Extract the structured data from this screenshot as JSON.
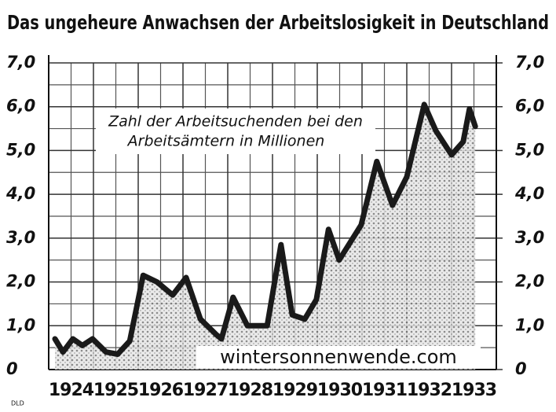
{
  "chart_data": {
    "type": "line",
    "title": "Das ungeheure Anwachsen der Arbeitslosigkeit in Deutschland",
    "annotation": [
      "Zahl der Arbeitsuchenden bei den",
      "Arbeitsämtern in Millionen"
    ],
    "watermark": "wintersonnenwende.com",
    "credit": "DLD",
    "x": [
      1924.14,
      1924.32,
      1924.54,
      1924.75,
      1924.98,
      1925.28,
      1925.54,
      1925.81,
      1926.11,
      1926.42,
      1926.77,
      1927.07,
      1927.39,
      1927.74,
      1927.86,
      1928.12,
      1928.44,
      1928.88,
      1929.19,
      1929.44,
      1929.72,
      1929.98,
      1930.25,
      1930.49,
      1930.98,
      1931.33,
      1931.68,
      1932.0,
      1932.39,
      1932.65,
      1933.0,
      1933.26,
      1933.4,
      1933.53
    ],
    "series": [
      {
        "color": "#1a1a1a",
        "values": [
          0.7,
          0.4,
          0.7,
          0.55,
          0.7,
          0.4,
          0.35,
          0.65,
          2.15,
          2.0,
          1.7,
          2.1,
          1.15,
          0.8,
          0.7,
          1.65,
          1.0,
          1.0,
          2.85,
          1.25,
          1.15,
          1.6,
          3.2,
          2.5,
          3.3,
          4.75,
          3.75,
          4.4,
          6.05,
          5.45,
          4.9,
          5.2,
          5.95,
          5.55
        ]
      }
    ],
    "xlim": [
      1924,
      1934
    ],
    "xticks": [
      1924,
      1925,
      1926,
      1927,
      1928,
      1929,
      1930,
      1931,
      1932,
      1933
    ],
    "ylim": [
      0,
      7
    ],
    "yticks": [
      0,
      {
        "value": 1,
        "label": "1,0"
      },
      {
        "value": 2,
        "label": "2,0"
      },
      {
        "value": 3,
        "label": "3,0"
      },
      {
        "value": 4,
        "label": "4,0"
      },
      {
        "value": 5,
        "label": "5,0"
      },
      {
        "value": 6,
        "label": "6,0"
      },
      {
        "value": 7,
        "label": "7,0"
      }
    ],
    "y2lim": [
      0,
      7
    ],
    "y2ticks": [
      0,
      {
        "value": 1,
        "label": "1,0"
      },
      {
        "value": 2,
        "label": "2,0"
      },
      {
        "value": 3,
        "label": "3,0"
      },
      {
        "value": 4,
        "label": "4,0"
      },
      {
        "value": 5,
        "label": "5,0"
      },
      {
        "value": 6,
        "label": "6,0"
      },
      {
        "value": 7,
        "label": "7,0"
      }
    ],
    "grid": true
  }
}
